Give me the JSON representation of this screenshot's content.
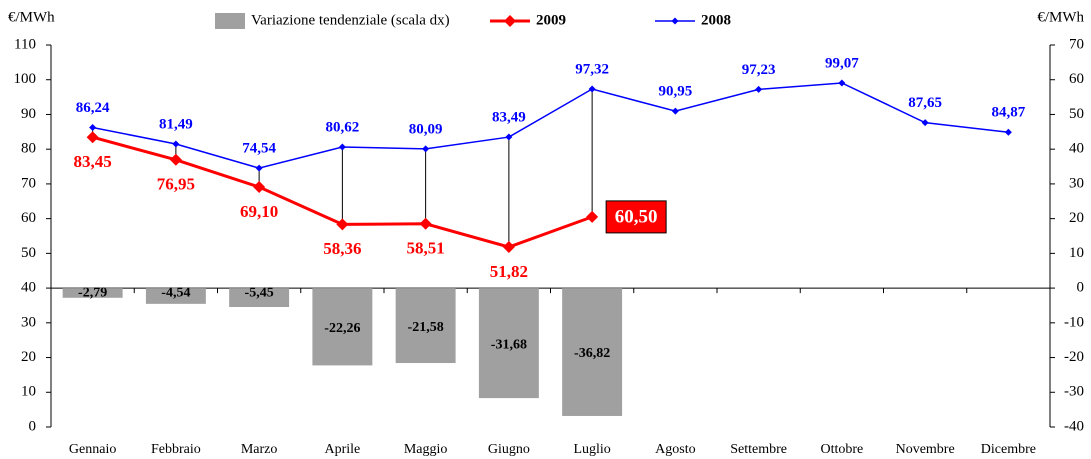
{
  "chart_data": {
    "type": "combo",
    "y_label": "€/MWh",
    "y2_label": "€/MWh",
    "categories": [
      "Gennaio",
      "Febbraio",
      "Marzo",
      "Aprile",
      "Maggio",
      "Giugno",
      "Luglio",
      "Agosto",
      "Settembre",
      "Ottobre",
      "Novembre",
      "Dicembre"
    ],
    "series": [
      {
        "name": "Variazione tendenziale (scala dx)",
        "type": "bar",
        "axis": "y2",
        "color": "#a0a0a0",
        "values": [
          -2.79,
          -4.54,
          -5.45,
          -22.26,
          -21.58,
          -31.68,
          -36.82,
          null,
          null,
          null,
          null,
          null
        ],
        "value_labels": [
          "-2,79",
          "-4,54",
          "-5,45",
          "-22,26",
          "-21,58",
          "-31,68",
          "-36,82",
          null,
          null,
          null,
          null,
          null
        ]
      },
      {
        "name": "2009",
        "type": "line",
        "color": "#ff0000",
        "values": [
          83.45,
          76.95,
          69.1,
          58.36,
          58.51,
          51.82,
          60.5,
          null,
          null,
          null,
          null,
          null
        ],
        "value_labels": [
          "83,45",
          "76,95",
          "69,10",
          "58,36",
          "58,51",
          "51,82",
          "60,50",
          null,
          null,
          null,
          null,
          null
        ]
      },
      {
        "name": "2008",
        "type": "line",
        "color": "#0000ff",
        "values": [
          86.24,
          81.49,
          74.54,
          80.62,
          80.09,
          83.49,
          97.32,
          90.95,
          97.23,
          99.07,
          87.65,
          84.87
        ],
        "value_labels": [
          "86,24",
          "81,49",
          "74,54",
          "80,62",
          "80,09",
          "83,49",
          "97,32",
          "90,95",
          "97,23",
          "99,07",
          "87,65",
          "84,87"
        ]
      }
    ],
    "ylim": [
      0,
      110
    ],
    "yticks": [
      0,
      10,
      20,
      30,
      40,
      50,
      60,
      70,
      80,
      90,
      100,
      110
    ],
    "y2lim": [
      -40,
      70
    ],
    "y2ticks": [
      -40,
      -30,
      -20,
      -10,
      0,
      10,
      20,
      30,
      40,
      50,
      60,
      70
    ],
    "hi_lo_lines": true
  }
}
